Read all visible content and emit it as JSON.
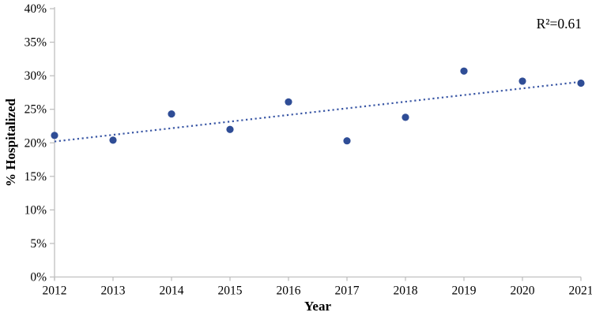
{
  "chart_data": {
    "type": "scatter",
    "title": "",
    "xlabel": "Year",
    "ylabel": "% Hospitalized",
    "annotation": "R²=0.61",
    "legend_position": "none",
    "grid": false,
    "categories": [
      "2012",
      "2013",
      "2014",
      "2015",
      "2016",
      "2017",
      "2018",
      "2019",
      "2020",
      "2021"
    ],
    "values": [
      21.1,
      20.4,
      24.3,
      22.0,
      26.1,
      20.3,
      23.8,
      30.7,
      29.2,
      28.9
    ],
    "yticks": [
      "0%",
      "5%",
      "10%",
      "15%",
      "20%",
      "25%",
      "30%",
      "35%",
      "40%"
    ],
    "ylim": [
      0,
      40
    ],
    "trendline": {
      "style": "dotted",
      "start_category": "2012",
      "start_value": 20.2,
      "end_category": "2021",
      "end_value": 29.1
    },
    "colors": {
      "marker": "#2F4D96",
      "trendline": "#3A57A5",
      "axis": "#BFBFBF",
      "text": "#000000"
    }
  }
}
